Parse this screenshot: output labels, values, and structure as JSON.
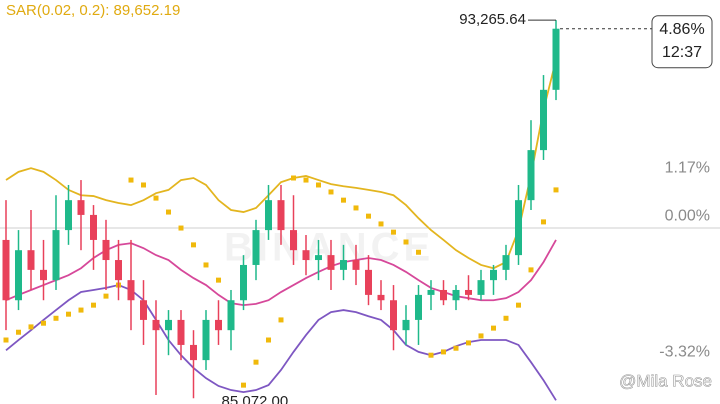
{
  "chart_data": {
    "type": "candlestick",
    "title": "SAR(0.02, 0.2): 89,652.19",
    "categories": [
      null,
      null,
      null,
      null,
      null,
      null,
      null,
      null,
      null,
      null,
      null,
      null,
      null,
      null,
      null,
      null,
      null,
      null,
      null,
      null,
      null,
      null,
      null,
      null,
      null,
      null,
      null,
      null,
      null,
      null,
      null,
      null,
      null,
      null,
      null,
      null,
      null,
      null,
      null,
      null,
      null,
      null,
      null,
      null,
      null
    ],
    "open": [
      -0.29,
      -1.76,
      -0.54,
      -1.02,
      -1.27,
      -0.05,
      0.68,
      0.32,
      -0.29,
      -0.78,
      -1.27,
      -1.76,
      -2.24,
      -2.49,
      -2.24,
      -2.85,
      -3.22,
      -2.24,
      -2.49,
      -1.76,
      -0.9,
      -0.05,
      0.68,
      -0.05,
      -0.54,
      -0.78,
      -0.66,
      -1.02,
      -0.78,
      -1.02,
      -1.63,
      -1.76,
      -2.49,
      -2.24,
      -1.63,
      -1.51,
      -1.76,
      -1.51,
      -1.63,
      -1.27,
      -1.02,
      -0.66,
      0.68,
      1.9,
      3.37
    ],
    "high": [
      0.68,
      -0.05,
      0.44,
      -0.29,
      0.8,
      1.05,
      1.17,
      0.56,
      0.2,
      -0.29,
      -0.29,
      -1.27,
      -1.76,
      -2.0,
      -2.0,
      -2.49,
      -2.0,
      -1.76,
      -1.51,
      -0.66,
      0.2,
      1.05,
      1.05,
      0.8,
      -0.17,
      -0.29,
      -0.29,
      -0.41,
      -0.41,
      -0.66,
      -1.27,
      -1.39,
      -1.88,
      -1.39,
      -1.27,
      -1.27,
      -1.39,
      -1.15,
      -1.02,
      -0.9,
      -0.41,
      1.05,
      2.63,
      3.73,
      5.07
    ],
    "low": [
      -2.49,
      -2.0,
      -1.51,
      -1.76,
      -1.51,
      -0.41,
      -0.54,
      -1.02,
      -1.51,
      -1.76,
      -2.49,
      -2.85,
      -4.07,
      -3.1,
      -3.22,
      -4.15,
      -3.46,
      -2.85,
      -2.98,
      -2.0,
      -1.27,
      -0.29,
      -0.41,
      -0.9,
      -1.15,
      -1.27,
      -1.51,
      -1.27,
      -1.39,
      -1.88,
      -2.0,
      -2.98,
      -2.85,
      -2.85,
      -2.0,
      -1.88,
      -2.0,
      -1.76,
      -1.76,
      -1.63,
      -1.27,
      -0.9,
      0.44,
      1.66,
      3.12
    ],
    "close": [
      -1.76,
      -0.54,
      -1.02,
      -1.27,
      -0.05,
      0.68,
      0.32,
      -0.29,
      -0.78,
      -1.27,
      -1.76,
      -2.24,
      -2.49,
      -2.24,
      -2.85,
      -3.22,
      -2.24,
      -2.49,
      -1.76,
      -0.9,
      -0.05,
      0.68,
      -0.05,
      -0.54,
      -0.78,
      -0.66,
      -1.02,
      -0.78,
      -1.02,
      -1.63,
      -1.76,
      -2.49,
      -2.24,
      -1.63,
      -1.51,
      -1.76,
      -1.51,
      -1.63,
      -1.27,
      -1.02,
      -0.66,
      0.68,
      1.9,
      3.37,
      4.86
    ],
    "up_color": "#1fb98a",
    "down_color": "#e8415a",
    "series": [
      {
        "color": "#e3b51f",
        "values": [
          1.17,
          1.37,
          1.46,
          1.37,
          1.17,
          0.93,
          0.8,
          0.78,
          0.68,
          0.61,
          0.56,
          0.68,
          0.85,
          0.93,
          1.17,
          1.22,
          1.05,
          0.68,
          0.44,
          0.39,
          0.49,
          0.8,
          1.12,
          1.22,
          1.27,
          1.17,
          1.07,
          1.02,
          0.98,
          0.93,
          0.88,
          0.8,
          0.56,
          0.24,
          -0.05,
          -0.29,
          -0.54,
          -0.73,
          -0.9,
          -0.98,
          -0.83,
          -0.05,
          1.29,
          2.88,
          4.1
        ]
      },
      {
        "color": "#d6489a",
        "values": [
          -1.76,
          -1.63,
          -1.51,
          -1.39,
          -1.27,
          -1.15,
          -0.98,
          -0.73,
          -0.54,
          -0.41,
          -0.37,
          -0.49,
          -0.66,
          -0.78,
          -1.02,
          -1.22,
          -1.39,
          -1.63,
          -1.83,
          -1.88,
          -1.85,
          -1.76,
          -1.56,
          -1.39,
          -1.22,
          -1.07,
          -0.93,
          -0.83,
          -0.78,
          -0.73,
          -0.78,
          -0.9,
          -1.07,
          -1.27,
          -1.46,
          -1.56,
          -1.66,
          -1.71,
          -1.76,
          -1.76,
          -1.71,
          -1.56,
          -1.27,
          -0.83,
          -0.29
        ]
      },
      {
        "color": "#7e57c2",
        "values": [
          -2.98,
          -2.73,
          -2.49,
          -2.24,
          -2.0,
          -1.76,
          -1.56,
          -1.51,
          -1.46,
          -1.39,
          -1.51,
          -1.76,
          -2.24,
          -2.73,
          -3.1,
          -3.41,
          -3.66,
          -3.85,
          -3.95,
          -4.0,
          -3.95,
          -3.83,
          -3.46,
          -3.02,
          -2.61,
          -2.24,
          -2.05,
          -2.0,
          -2.05,
          -2.15,
          -2.24,
          -2.49,
          -2.85,
          -3.02,
          -3.1,
          -3.02,
          -2.88,
          -2.78,
          -2.73,
          -2.73,
          -2.73,
          -2.85,
          -3.27,
          -3.71,
          -4.2
        ]
      }
    ],
    "sar": {
      "color": "#f0b90b",
      "values": [
        -2.73,
        -2.54,
        -2.41,
        -2.32,
        -2.2,
        -2.1,
        -2.0,
        -1.88,
        -1.66,
        -1.39,
        1.17,
        1.05,
        0.73,
        0.39,
        0.0,
        -0.41,
        -0.9,
        -1.27,
        null,
        -3.83,
        -3.27,
        -2.73,
        -2.24,
        1.22,
        1.17,
        1.05,
        0.88,
        0.68,
        0.49,
        0.29,
        0.1,
        -0.1,
        -0.34,
        -0.59,
        -3.1,
        -3.02,
        -2.93,
        -2.8,
        -2.63,
        -2.44,
        -2.2,
        -1.88,
        -1.02,
        0.15,
        0.93
      ]
    },
    "ylim": [
      -4.29,
      5.56
    ],
    "yticks": [
      {
        "value": 1.17,
        "label": "1.17%"
      },
      {
        "value": 0,
        "label": "0.00%"
      },
      {
        "value": -3.32,
        "label": "-3.32%"
      }
    ],
    "last_price": {
      "value": 4.86,
      "label": "4.86%"
    },
    "countdown": "12:37",
    "annotations": [
      {
        "text": "93,265.64"
      },
      {
        "text": "85,072.00"
      }
    ],
    "watermark": "BINANCE",
    "credit": "@Mila Rose"
  }
}
